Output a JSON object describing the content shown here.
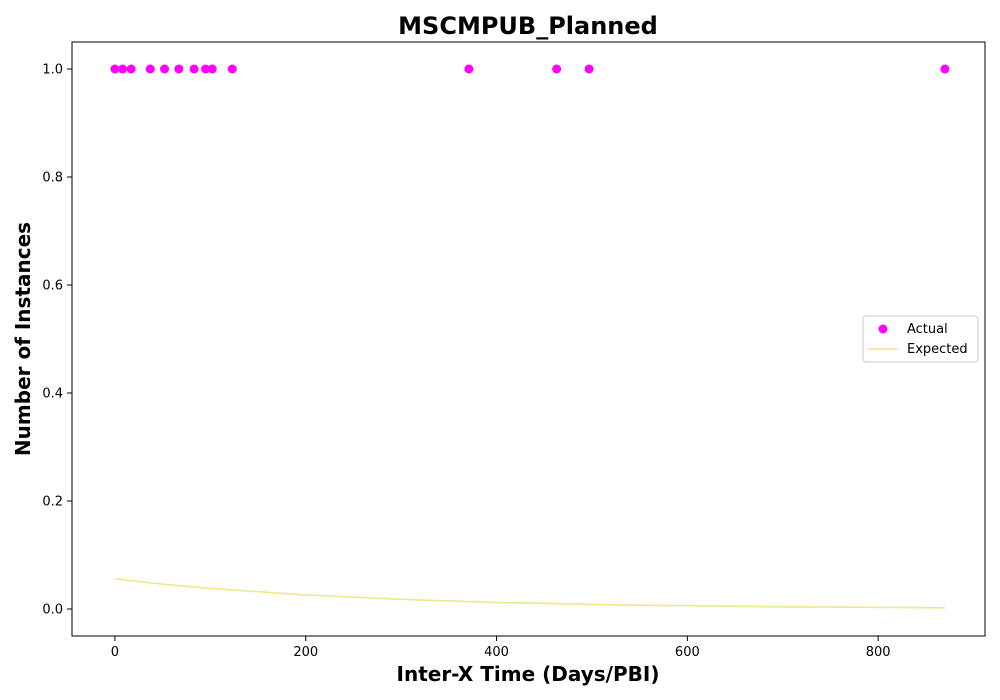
{
  "chart_data": {
    "type": "scatter",
    "title": "MSCMPUB_Planned",
    "xlabel": "Inter-X Time (Days/PBI)",
    "ylabel": "Number of Instances",
    "xlim": [
      -45,
      912
    ],
    "ylim": [
      -0.05,
      1.05
    ],
    "xticks": [
      0,
      200,
      400,
      600,
      800
    ],
    "yticks": [
      0.0,
      0.2,
      0.4,
      0.6,
      0.8,
      1.0
    ],
    "xtick_labels": [
      "0",
      "200",
      "400",
      "600",
      "800"
    ],
    "ytick_labels": [
      "0.0",
      "0.2",
      "0.4",
      "0.6",
      "0.8",
      "1.0"
    ],
    "grid": false,
    "legend": {
      "position": "center-right",
      "entries": [
        "Actual",
        "Expected"
      ]
    },
    "series": [
      {
        "name": "Actual",
        "type": "scatter",
        "color": "#ff00ff",
        "x": [
          0,
          8,
          17,
          37,
          52,
          67,
          83,
          95,
          102,
          123,
          371,
          463,
          497,
          870
        ],
        "y": [
          1,
          1,
          1,
          1,
          1,
          1,
          1,
          1,
          1,
          1,
          1,
          1,
          1,
          1
        ]
      },
      {
        "name": "Expected",
        "type": "line",
        "color": "#f0e68c",
        "x": [
          0,
          50,
          100,
          150,
          200,
          250,
          300,
          350,
          400,
          450,
          500,
          550,
          600,
          650,
          700,
          750,
          800,
          850,
          870
        ],
        "y": [
          0.056,
          0.046,
          0.038,
          0.032,
          0.026,
          0.022,
          0.018,
          0.015,
          0.012,
          0.0105,
          0.0085,
          0.007,
          0.006,
          0.005,
          0.004,
          0.0035,
          0.003,
          0.0025,
          0.002
        ]
      }
    ]
  }
}
